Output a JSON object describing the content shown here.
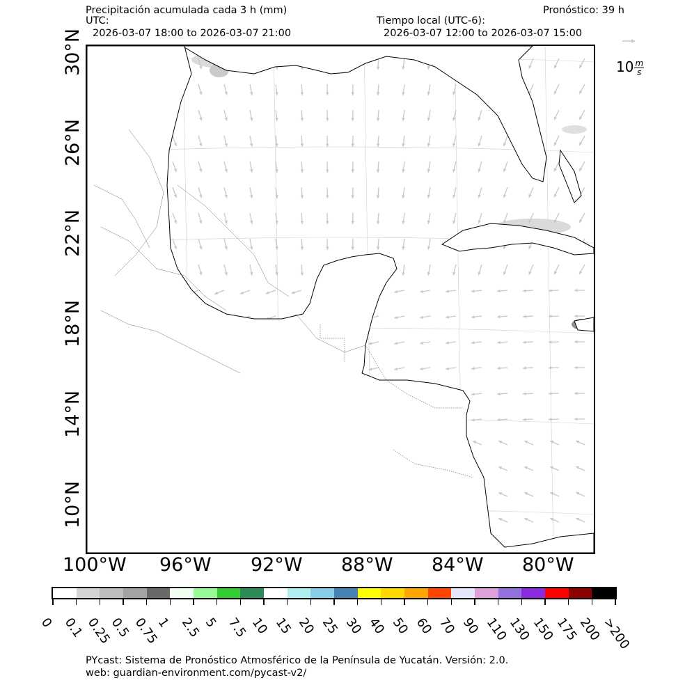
{
  "header": {
    "title": "Precipitación acumulada cada 3 h (mm)",
    "forecast": "Pronóstico: 39 h",
    "utc_label": "UTC:",
    "utc_range": "2026-03-07 18:00 to 2026-03-07 21:00",
    "local_label": "Tiempo local (UTC-6):",
    "local_range": "2026-03-07 12:00 to 2026-03-07 15:00"
  },
  "wind_key": {
    "value": "10",
    "unit_num": "m",
    "unit_den": "s"
  },
  "lat_labels": [
    "30°N",
    "26°N",
    "22°N",
    "18°N",
    "14°N",
    "10°N"
  ],
  "lon_labels": [
    "100°W",
    "96°W",
    "92°W",
    "88°W",
    "84°W",
    "80°W"
  ],
  "colorbar": {
    "colors": [
      "#ffffff",
      "#d3d3d3",
      "#bdbdbd",
      "#a3a3a3",
      "#696969",
      "#f0fff0",
      "#98fb98",
      "#32cd32",
      "#2e8b57",
      "#ffffff",
      "#afeeee",
      "#87ceeb",
      "#4682b4",
      "#ffff00",
      "#ffd700",
      "#ffa500",
      "#ff4500",
      "#e6e6fa",
      "#dda0dd",
      "#9370db",
      "#8a2be2",
      "#ff0000",
      "#8b0000",
      "#000000"
    ],
    "labels": [
      "0",
      "0.1",
      "0.25",
      "0.5",
      "0.75",
      "1",
      "2.5",
      "5",
      "7.5",
      "10",
      "15",
      "20",
      "25",
      "30",
      "40",
      "50",
      "60",
      "70",
      "90",
      "110",
      "130",
      "150",
      "175",
      "200",
      ">200"
    ]
  },
  "footer": {
    "line1": "PYcast: Sistema de Pronóstico Atmosférico de la Península de Yucatán. Versión: 2.0.",
    "line2": "web: guardian-environment.com/pycast-v2/"
  }
}
